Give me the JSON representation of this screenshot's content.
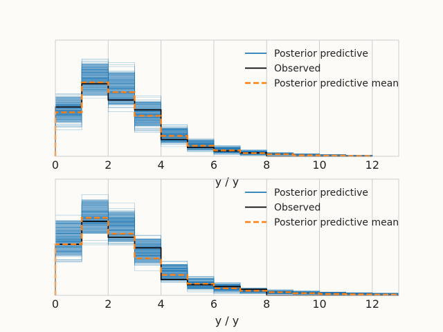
{
  "chart_data": [
    {
      "type": "histogram-step",
      "xlabel": "y / y",
      "xlim": [
        0,
        13
      ],
      "ylim": [
        0,
        0.33
      ],
      "xticks": [
        "0",
        "2",
        "4",
        "6",
        "8",
        "10",
        "12"
      ],
      "xtick_values": [
        0,
        2,
        4,
        6,
        8,
        10,
        12
      ],
      "grid": true,
      "legend_position": "top-right",
      "legend": [
        {
          "label": "Posterior predictive",
          "style": "line",
          "color": "#1f77b4"
        },
        {
          "label": "Observed",
          "style": "line",
          "color": "#000000"
        },
        {
          "label": "Posterior predictive mean",
          "style": "dashed",
          "color": "#ff7f0e"
        }
      ],
      "bins": [
        0,
        1,
        2,
        3,
        4,
        5,
        6,
        7,
        8,
        9,
        10,
        11,
        12
      ],
      "observed": [
        0.14,
        0.206,
        0.16,
        0.132,
        0.048,
        0.025,
        0.015,
        0.01,
        0,
        0,
        0,
        0
      ],
      "predictive_mean": [
        0.125,
        0.21,
        0.182,
        0.115,
        0.058,
        0.03,
        0.017,
        0.009,
        0.006,
        0.003,
        0.002,
        0.001
      ],
      "predictive_band_low": [
        0.062,
        0.13,
        0.105,
        0.055,
        0.018,
        0.006,
        0.002,
        0.001,
        0,
        0,
        0,
        0
      ],
      "predictive_band_high": [
        0.2,
        0.3,
        0.275,
        0.185,
        0.098,
        0.058,
        0.035,
        0.02,
        0.014,
        0.009,
        0.006,
        0.004
      ]
    },
    {
      "type": "histogram-step",
      "xlabel": "y / y",
      "xlim": [
        0,
        13
      ],
      "ylim": [
        0,
        0.33
      ],
      "xticks": [
        "0",
        "2",
        "4",
        "6",
        "8",
        "10",
        "12"
      ],
      "xtick_values": [
        0,
        2,
        4,
        6,
        8,
        10,
        12
      ],
      "grid": true,
      "legend_position": "top-right",
      "legend": [
        {
          "label": "Posterior predictive",
          "style": "line",
          "color": "#1f77b4"
        },
        {
          "label": "Observed",
          "style": "line",
          "color": "#000000"
        },
        {
          "label": "Posterior predictive mean",
          "style": "dashed",
          "color": "#ff7f0e"
        }
      ],
      "bins": [
        0,
        1,
        2,
        3,
        4,
        5,
        6,
        7,
        8,
        9,
        10,
        11,
        12,
        13
      ],
      "observed": [
        0.145,
        0.21,
        0.165,
        0.135,
        0.045,
        0.03,
        0.025,
        0.017,
        0,
        0,
        0,
        0,
        0
      ],
      "predictive_mean": [
        0.145,
        0.22,
        0.175,
        0.105,
        0.058,
        0.033,
        0.02,
        0.013,
        0.009,
        0.006,
        0.004,
        0.003,
        0.002
      ],
      "predictive_band_low": [
        0.065,
        0.13,
        0.11,
        0.06,
        0.02,
        0.005,
        0.002,
        0.001,
        0,
        0,
        0,
        0,
        0
      ],
      "predictive_band_high": [
        0.255,
        0.31,
        0.275,
        0.19,
        0.108,
        0.062,
        0.04,
        0.026,
        0.018,
        0.014,
        0.011,
        0.009,
        0.007
      ]
    }
  ],
  "colors": {
    "predictive": "#1f77b4",
    "observed": "#000000",
    "mean": "#ff7f0e",
    "grid": "#cccccc",
    "spine": "#cccccc",
    "background": "#fcfbf8"
  }
}
